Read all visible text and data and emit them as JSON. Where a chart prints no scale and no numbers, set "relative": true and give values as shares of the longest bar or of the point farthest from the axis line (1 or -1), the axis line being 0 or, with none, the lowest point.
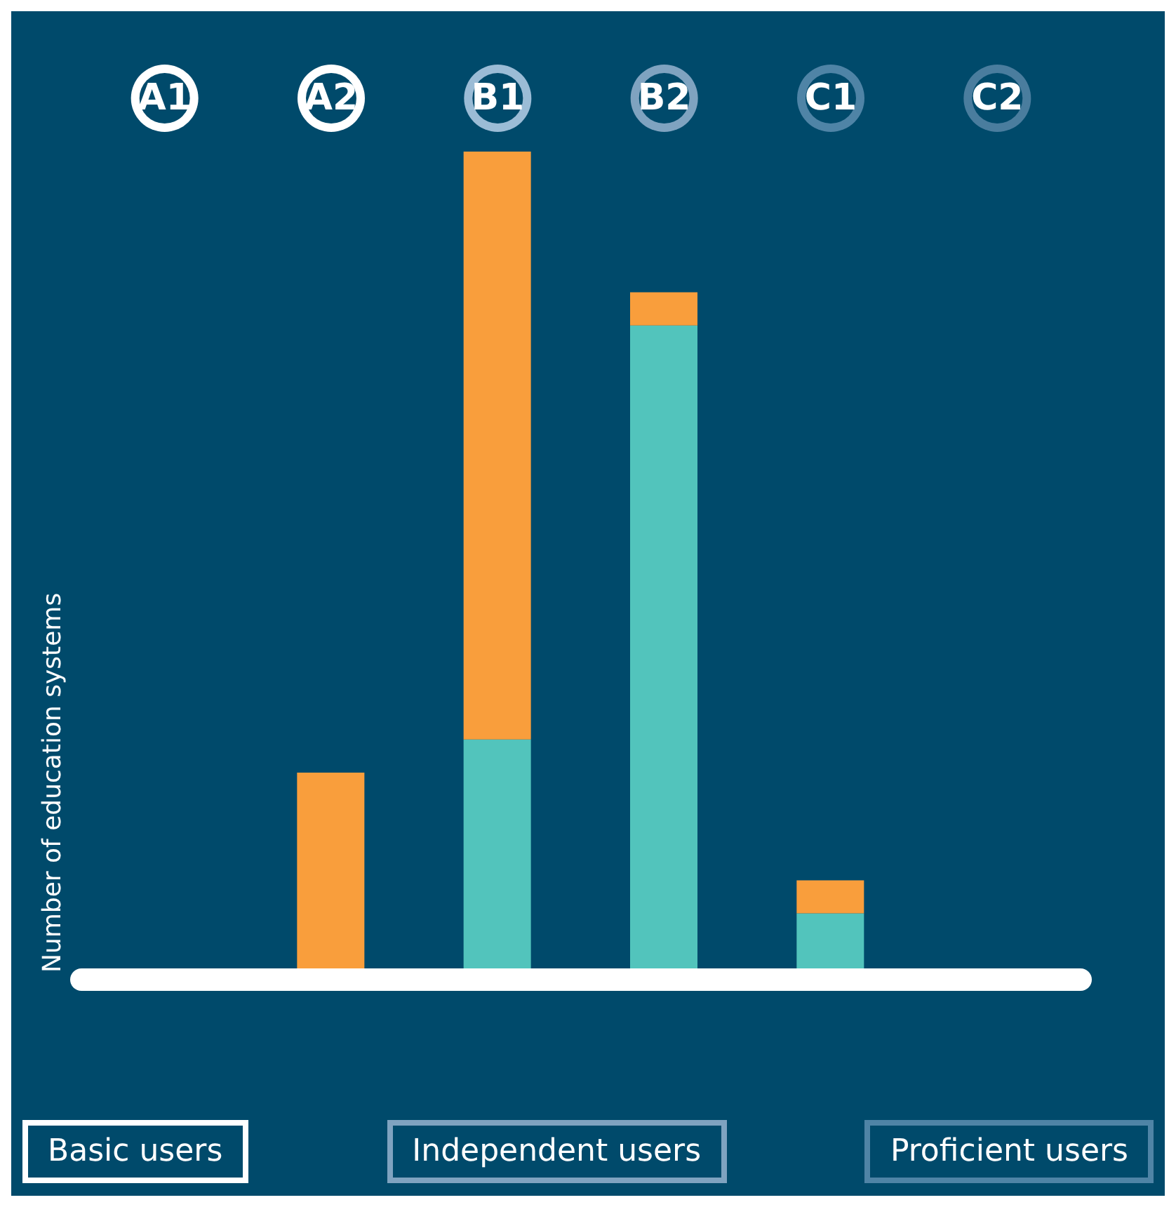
{
  "chart_data": {
    "type": "bar",
    "relative": true,
    "stacked": true,
    "ylabel": "Number of education systems",
    "categories": [
      "A1",
      "A2",
      "B1",
      "B2",
      "C1",
      "C2"
    ],
    "series": [
      {
        "color": "#52c4bc",
        "values": [
          0,
          0,
          0.29,
          0.79,
          0.08,
          0
        ]
      },
      {
        "color": "#f99e3c",
        "values": [
          0,
          0.25,
          0.71,
          0.04,
          0.04,
          0
        ]
      }
    ],
    "annotations": [
      "Basic users",
      "Independent users",
      "Proficient users"
    ],
    "legend": false,
    "grid": false
  }
}
